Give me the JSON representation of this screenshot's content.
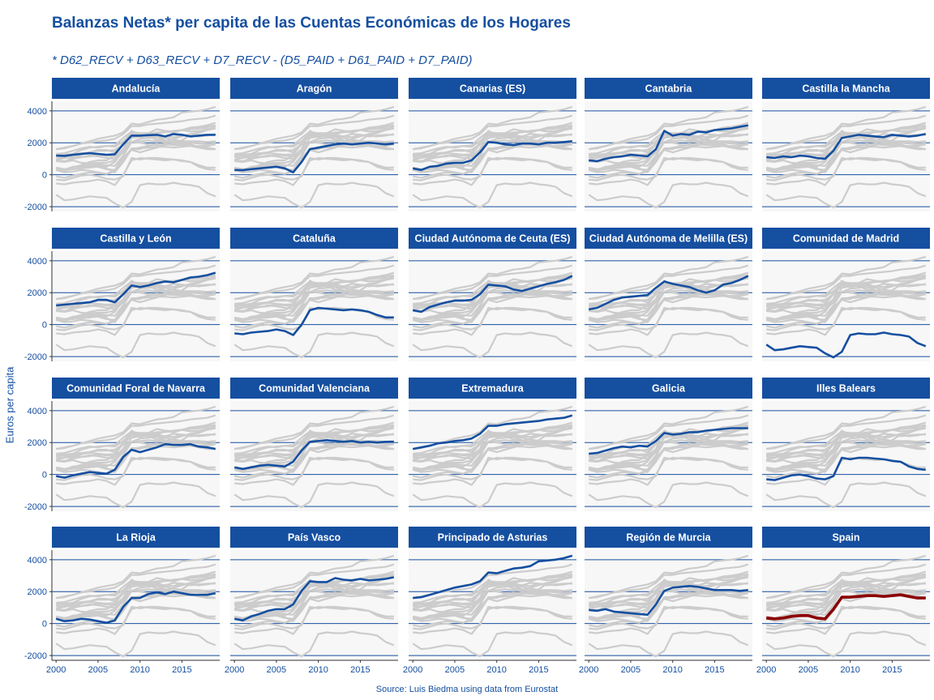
{
  "chart_data": {
    "type": "line",
    "title": "Balanzas Netas* per capita de las Cuentas Económicas de los Hogares",
    "subtitle": "* D62_RECV + D63_RECV + D7_RECV - (D5_PAID + D61_PAID + D7_PAID)",
    "ylabel": "Euros per capita",
    "xlabel": "",
    "source": "Source: Luis Biedma using data from Eurostat",
    "x": [
      2000,
      2001,
      2002,
      2003,
      2004,
      2005,
      2006,
      2007,
      2008,
      2009,
      2010,
      2011,
      2012,
      2013,
      2014,
      2015,
      2016,
      2017,
      2018,
      2019
    ],
    "xlim": [
      1999.5,
      2019.5
    ],
    "ylim": [
      -2300,
      4600
    ],
    "x_ticks": [
      2000,
      2005,
      2010,
      2015
    ],
    "y_ticks": [
      -2000,
      0,
      2000,
      4000
    ],
    "x_tick_labels": [
      "2000",
      "2005",
      "2010",
      "2015"
    ],
    "y_tick_labels": [
      "-2000",
      "0",
      "2000",
      "4000"
    ],
    "grid": true,
    "legend": "none",
    "facet_layout": {
      "rows": 4,
      "cols": 5
    },
    "colors": {
      "highlight": "#154fa0",
      "highlight_spain": "#8b0000",
      "background_lines": "#cccccc",
      "strip": "#154fa0",
      "panel_bg": "#f7f7f7"
    },
    "series": [
      {
        "name": "Andalucía",
        "values": [
          1200,
          1180,
          1250,
          1300,
          1350,
          1300,
          1250,
          1280,
          1900,
          2450,
          2450,
          2480,
          2500,
          2400,
          2550,
          2500,
          2400,
          2450,
          2500,
          2500
        ]
      },
      {
        "name": "Aragón",
        "values": [
          300,
          280,
          350,
          400,
          450,
          500,
          400,
          150,
          800,
          1600,
          1700,
          1800,
          1900,
          1950,
          1900,
          1950,
          2000,
          1950,
          1900,
          1950
        ]
      },
      {
        "name": "Canarias (ES)",
        "values": [
          400,
          300,
          500,
          550,
          700,
          750,
          750,
          900,
          1400,
          2050,
          2000,
          1900,
          1850,
          1950,
          1950,
          1900,
          2000,
          2000,
          2050,
          2100
        ]
      },
      {
        "name": "Cantabria",
        "values": [
          900,
          850,
          1000,
          1100,
          1150,
          1250,
          1200,
          1150,
          1600,
          2750,
          2450,
          2550,
          2500,
          2700,
          2650,
          2800,
          2850,
          2900,
          3000,
          3100
        ]
      },
      {
        "name": "Castilla la Mancha",
        "values": [
          1100,
          1050,
          1150,
          1100,
          1200,
          1150,
          1050,
          1000,
          1500,
          2300,
          2400,
          2500,
          2450,
          2400,
          2350,
          2500,
          2450,
          2400,
          2450,
          2550
        ]
      },
      {
        "name": "Castilla y León",
        "values": [
          1200,
          1250,
          1300,
          1350,
          1400,
          1550,
          1550,
          1400,
          1900,
          2450,
          2350,
          2450,
          2600,
          2700,
          2650,
          2800,
          2950,
          3000,
          3100,
          3250
        ]
      },
      {
        "name": "Cataluña",
        "values": [
          -550,
          -600,
          -500,
          -450,
          -400,
          -300,
          -400,
          -650,
          0,
          900,
          1050,
          1000,
          950,
          900,
          950,
          900,
          800,
          600,
          450,
          450
        ]
      },
      {
        "name": "Ciudad Autónoma de Ceuta (ES)",
        "values": [
          900,
          800,
          1100,
          1250,
          1400,
          1500,
          1500,
          1550,
          1900,
          2500,
          2450,
          2400,
          2200,
          2100,
          2250,
          2400,
          2550,
          2650,
          2800,
          3050
        ]
      },
      {
        "name": "Ciudad Autónoma de Melilla (ES)",
        "values": [
          950,
          1050,
          1300,
          1550,
          1700,
          1750,
          1800,
          1850,
          2300,
          2700,
          2550,
          2450,
          2350,
          2150,
          2000,
          2150,
          2500,
          2600,
          2800,
          3050
        ]
      },
      {
        "name": "Comunidad de Madrid",
        "values": [
          -1250,
          -1600,
          -1550,
          -1450,
          -1350,
          -1400,
          -1450,
          -1800,
          -2050,
          -1700,
          -650,
          -550,
          -600,
          -600,
          -500,
          -600,
          -650,
          -750,
          -1150,
          -1350
        ]
      },
      {
        "name": "Comunidad Foral de Navarra",
        "values": [
          -100,
          -200,
          -50,
          50,
          150,
          100,
          50,
          300,
          1100,
          1550,
          1400,
          1550,
          1700,
          1900,
          1850,
          1850,
          1900,
          1750,
          1700,
          1600
        ]
      },
      {
        "name": "Comunidad Valenciana",
        "values": [
          450,
          350,
          450,
          550,
          600,
          550,
          500,
          800,
          1500,
          2050,
          2100,
          2150,
          2100,
          2050,
          2100,
          2000,
          2050,
          2000,
          2050,
          2050
        ]
      },
      {
        "name": "Extremadura",
        "values": [
          1600,
          1700,
          1800,
          1950,
          2000,
          2100,
          2150,
          2250,
          2550,
          3050,
          3050,
          3150,
          3200,
          3250,
          3300,
          3350,
          3450,
          3500,
          3550,
          3700
        ]
      },
      {
        "name": "Galicia",
        "values": [
          1300,
          1350,
          1500,
          1650,
          1750,
          1700,
          1800,
          1750,
          2100,
          2600,
          2500,
          2550,
          2650,
          2650,
          2750,
          2800,
          2850,
          2900,
          2900,
          2900
        ]
      },
      {
        "name": "Illes Balears",
        "values": [
          -300,
          -350,
          -200,
          -50,
          0,
          -100,
          -250,
          -300,
          -100,
          1050,
          950,
          1050,
          1050,
          1000,
          950,
          850,
          800,
          500,
          350,
          300
        ]
      },
      {
        "name": "La Rioja",
        "values": [
          300,
          150,
          200,
          300,
          250,
          150,
          50,
          200,
          1050,
          1600,
          1600,
          1850,
          1950,
          1850,
          2000,
          1900,
          1800,
          1800,
          1800,
          1900
        ]
      },
      {
        "name": "País Vasco",
        "values": [
          300,
          200,
          450,
          600,
          800,
          900,
          900,
          1200,
          2050,
          2650,
          2600,
          2600,
          2850,
          2750,
          2700,
          2800,
          2700,
          2750,
          2800,
          2900
        ]
      },
      {
        "name": "Principado de Asturias",
        "values": [
          1600,
          1650,
          1800,
          1950,
          2100,
          2250,
          2350,
          2450,
          2650,
          3200,
          3150,
          3300,
          3450,
          3500,
          3600,
          3900,
          3950,
          4000,
          4100,
          4250
        ]
      },
      {
        "name": "Región de Murcia",
        "values": [
          850,
          800,
          900,
          750,
          700,
          650,
          600,
          550,
          1200,
          2050,
          2250,
          2300,
          2350,
          2300,
          2200,
          2100,
          2100,
          2100,
          2050,
          2100
        ]
      },
      {
        "name": "Spain",
        "values": [
          350,
          300,
          350,
          450,
          500,
          500,
          350,
          300,
          900,
          1650,
          1650,
          1700,
          1750,
          1750,
          1700,
          1750,
          1800,
          1700,
          1600,
          1600
        ]
      }
    ]
  }
}
